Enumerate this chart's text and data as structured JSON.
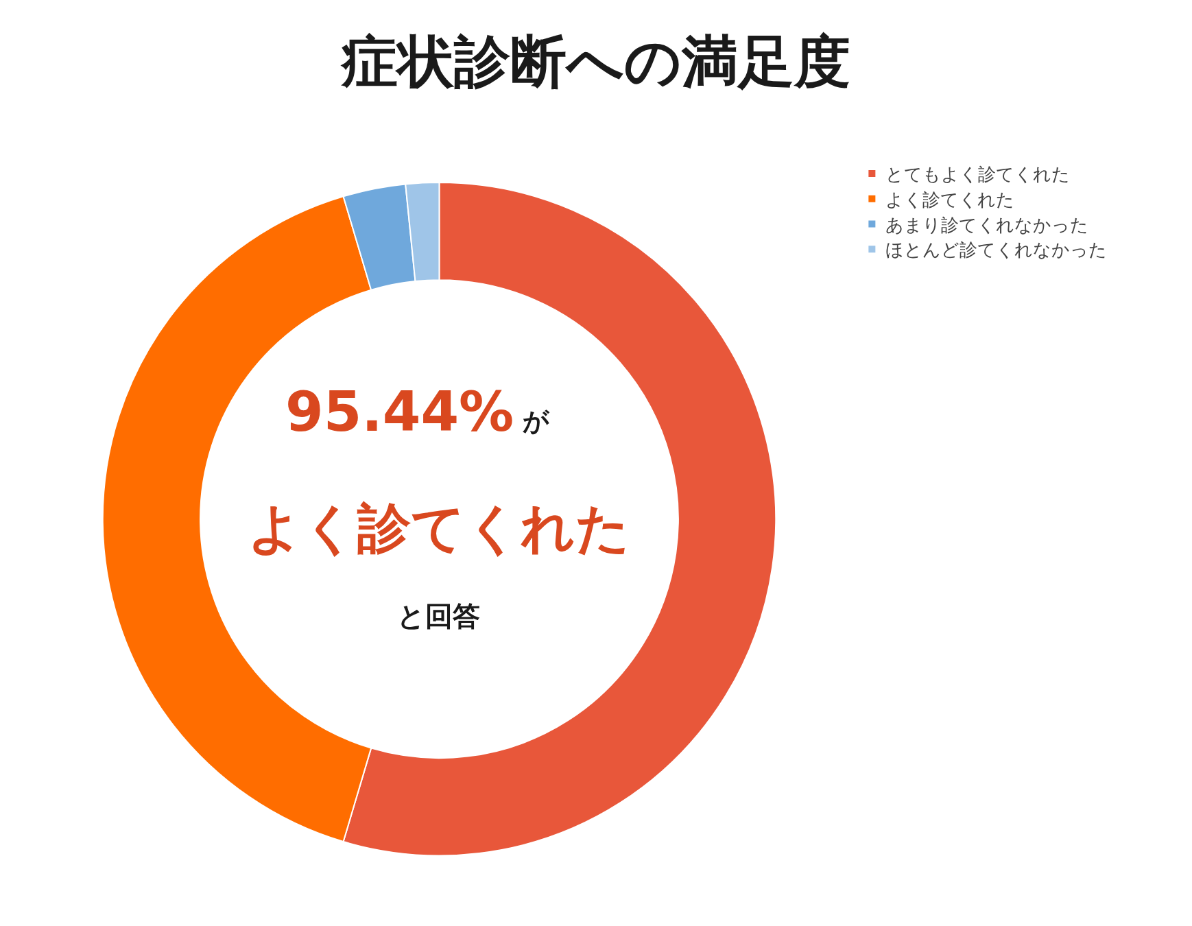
{
  "chart_data": {
    "type": "donut",
    "title": "症状診断への満足度",
    "categories": [
      "とてもよく診てくれた",
      "よく診てくれた",
      "あまり診てくれなかった",
      "ほとんど診てくれなかった"
    ],
    "values": [
      54.6,
      40.8,
      3.0,
      1.6
    ],
    "colors": [
      "#e8573a",
      "#ff6d00",
      "#6fa8dc",
      "#9fc5e8"
    ],
    "legend": "top right",
    "annotations": [
      "95.44%",
      "が",
      "よく診てくれた",
      "と回答"
    ]
  }
}
